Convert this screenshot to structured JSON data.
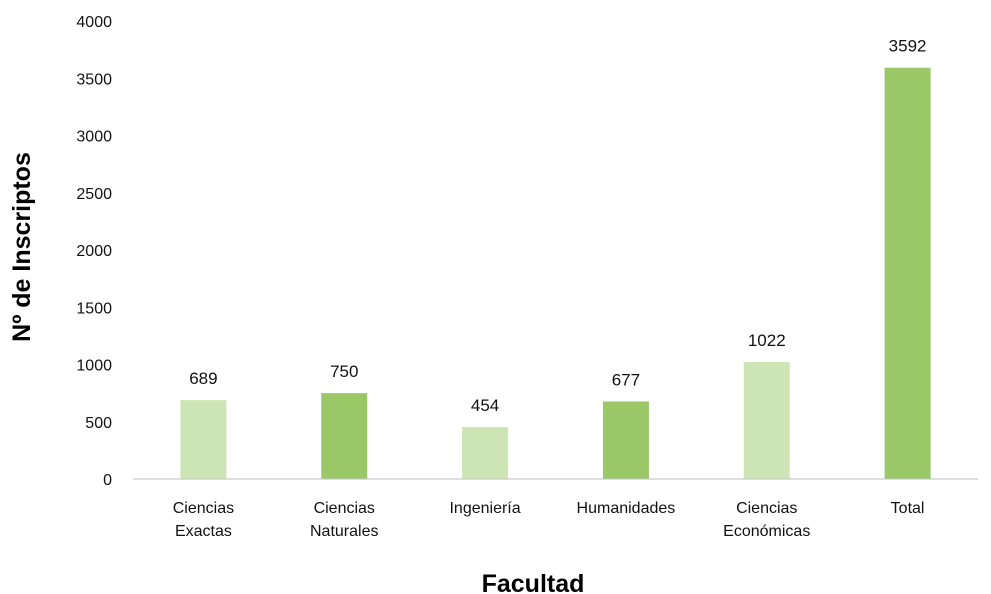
{
  "chart_data": {
    "type": "bar",
    "categories": [
      [
        "Ciencias",
        "Exactas"
      ],
      [
        "Ciencias",
        "Naturales"
      ],
      [
        "Ingeniería"
      ],
      [
        "Humanidades"
      ],
      [
        "Ciencias",
        "Económicas"
      ],
      [
        "Total"
      ]
    ],
    "values": [
      689,
      750,
      454,
      677,
      1022,
      3592
    ],
    "data_labels": [
      "689",
      "750",
      "454",
      "677",
      "1022",
      "3592"
    ],
    "bar_colors": [
      "#cde5b5",
      "#9ac867",
      "#cde5b5",
      "#9ac867",
      "#cde5b5",
      "#9ac867"
    ],
    "xlabel": "Facultad",
    "ylabel": "Nº de Inscriptos",
    "ylim": [
      0,
      4000
    ],
    "yticks": [
      0,
      500,
      1000,
      1500,
      2000,
      2500,
      3000,
      3500,
      4000
    ],
    "grid": false,
    "legend": "none"
  }
}
